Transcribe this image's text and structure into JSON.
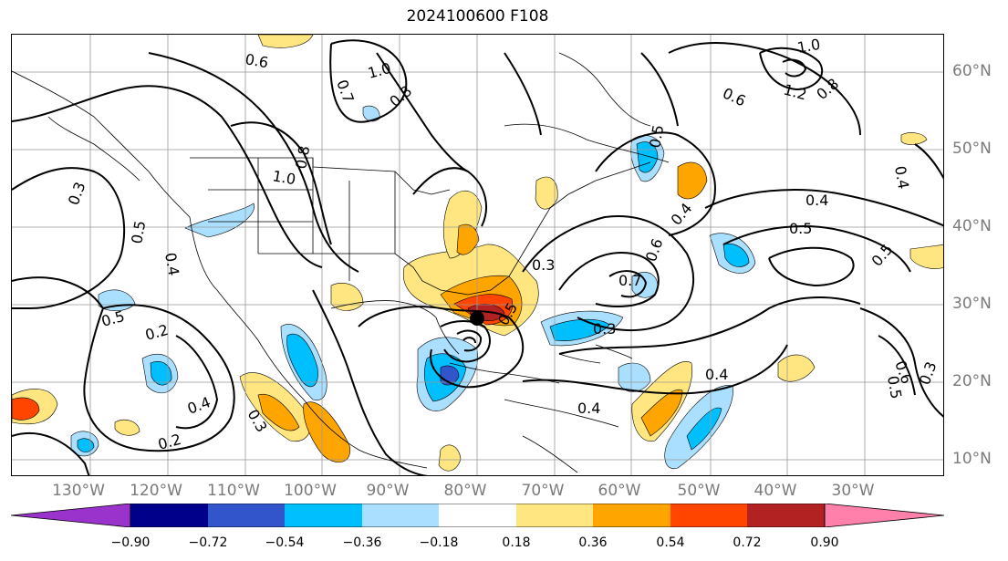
{
  "title": "2024100600 F108",
  "longitude_labels": [
    "130°W",
    "120°W",
    "110°W",
    "100°W",
    "90°W",
    "80°W",
    "70°W",
    "60°W",
    "50°W",
    "40°W",
    "30°W"
  ],
  "latitude_labels": [
    "60°N",
    "50°N",
    "40°N",
    "30°N",
    "20°N",
    "10°N"
  ],
  "colorbar": {
    "ticks": [
      "−0.90",
      "−0.72",
      "−0.54",
      "−0.36",
      "−0.18",
      "0.18",
      "0.36",
      "0.54",
      "0.72",
      "0.90"
    ],
    "colors": [
      "#9933cc",
      "#00008b",
      "#3355cc",
      "#00bfff",
      "#aadfff",
      "#ffffff",
      "#ffe680",
      "#ffa500",
      "#ff4500",
      "#b22222",
      "#ff80aa"
    ]
  },
  "contour_labels": [
    "0.6",
    "1.0",
    "0.8",
    "0.7",
    "1.0",
    "0.8",
    "0.3",
    "0.5",
    "0.4",
    "0.5",
    "0.2",
    "0.4",
    "0.3",
    "0.2",
    "0.3",
    "0.5",
    "0.3",
    "0.4",
    "0.5",
    "0.7",
    "0.6",
    "0.4",
    "0.4",
    "0.5",
    "1.0",
    "1.2",
    "0.8",
    "0.6",
    "0.4",
    "0.5",
    "0.6",
    "0.5",
    "0.3",
    "0.4"
  ],
  "marker": "storm-center-dot"
}
